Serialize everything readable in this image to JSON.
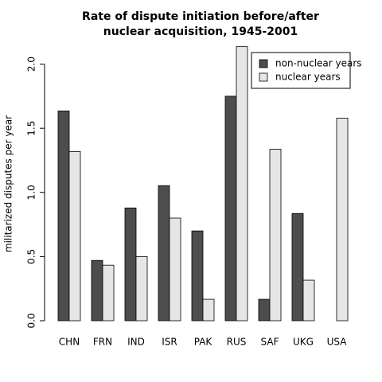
{
  "chart_data": {
    "type": "bar",
    "title": [
      "Rate of dispute initiation before/after",
      "nuclear acquisition, 1945-2001"
    ],
    "y_label": "militarized disputes per year",
    "categories": [
      "CHN",
      "FRN",
      "IND",
      "ISR",
      "PAK",
      "RUS",
      "SAF",
      "UKG",
      "USA"
    ],
    "series": [
      {
        "name": "non-nuclear years",
        "color": "#4d4d4d",
        "values": [
          1.635,
          0.47,
          0.879,
          1.053,
          0.7,
          1.75,
          0.167,
          0.836,
          null
        ]
      },
      {
        "name": "nuclear years",
        "color": "#e6e6e6",
        "values": [
          1.319,
          0.433,
          0.5,
          0.8,
          0.167,
          2.136,
          1.337,
          0.316,
          1.579
        ]
      }
    ],
    "ylim": [
      0,
      2.14
    ],
    "yticks": [
      {
        "value": 0,
        "label": "0.0"
      },
      0.5,
      {
        "value": 1,
        "label": "1.0"
      },
      1.5,
      {
        "value": 2,
        "label": "2.0"
      }
    ],
    "legend": "top-right"
  }
}
